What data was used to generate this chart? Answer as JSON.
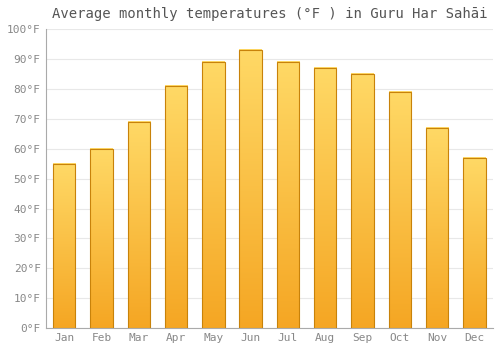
{
  "title": "Average monthly temperatures (°F ) in Guru Har Sahāi",
  "months": [
    "Jan",
    "Feb",
    "Mar",
    "Apr",
    "May",
    "Jun",
    "Jul",
    "Aug",
    "Sep",
    "Oct",
    "Nov",
    "Dec"
  ],
  "values": [
    55,
    60,
    69,
    81,
    89,
    93,
    89,
    87,
    85,
    79,
    67,
    57
  ],
  "bar_color_bottom": "#F5A623",
  "bar_color_top": "#FFD966",
  "bar_edge_color": "#C8820A",
  "ylim": [
    0,
    100
  ],
  "yticks": [
    0,
    10,
    20,
    30,
    40,
    50,
    60,
    70,
    80,
    90,
    100
  ],
  "ytick_labels": [
    "0°F",
    "10°F",
    "20°F",
    "30°F",
    "40°F",
    "50°F",
    "60°F",
    "70°F",
    "80°F",
    "90°F",
    "100°F"
  ],
  "background_color": "#FFFFFF",
  "plot_bg_color": "#FFFFFF",
  "grid_color": "#E8E8E8",
  "spine_color": "#AAAAAA",
  "tick_color": "#888888",
  "title_color": "#555555",
  "title_fontsize": 10,
  "tick_fontsize": 8,
  "bar_width": 0.6
}
